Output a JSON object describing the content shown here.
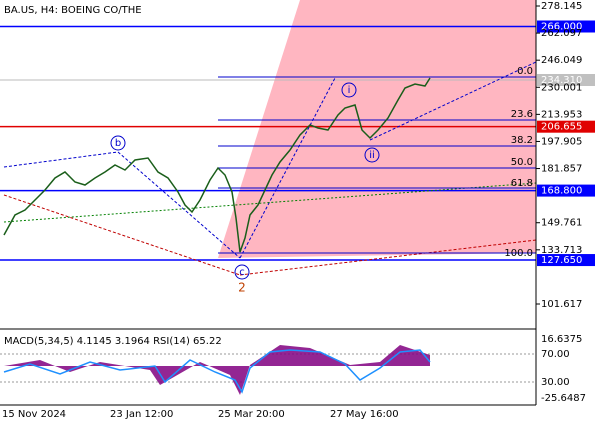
{
  "header": {
    "symbol": "BA.US, H4:  BOEING CO/THE"
  },
  "price_axis": {
    "ticks": [
      278.145,
      262.097,
      246.049,
      230.001,
      213.953,
      197.905,
      181.857,
      149.761,
      133.713,
      101.617
    ]
  },
  "levels": [
    {
      "value": 266,
      "label": "266.000",
      "color": "#0000ff"
    },
    {
      "value": 206.655,
      "label": "206.655",
      "color": "#e00000"
    },
    {
      "value": 168.8,
      "label": "168.800",
      "color": "#0000ff"
    },
    {
      "value": 127.65,
      "label": "127.650",
      "color": "#0000ff"
    }
  ],
  "current_price": {
    "value": 234.31,
    "label": "234.310"
  },
  "fibonacci": [
    "0.0",
    "23.6",
    "38.2",
    "50.0",
    "61.8",
    "100.0"
  ],
  "waves": {
    "i": "i",
    "ii": "ii",
    "b": "b",
    "c": "c",
    "two": "2"
  },
  "indicator": {
    "title": "MACD(5,34,5) 4.1145 3.1964 RSI(14) 65.22",
    "axis": [
      "16.6375",
      "70.00",
      "30.00",
      "-25.6487"
    ]
  },
  "dates": [
    "15 Nov 2024",
    "23 Jan 12:00",
    "25 Mar 20:00",
    "27 May 16:00"
  ]
}
